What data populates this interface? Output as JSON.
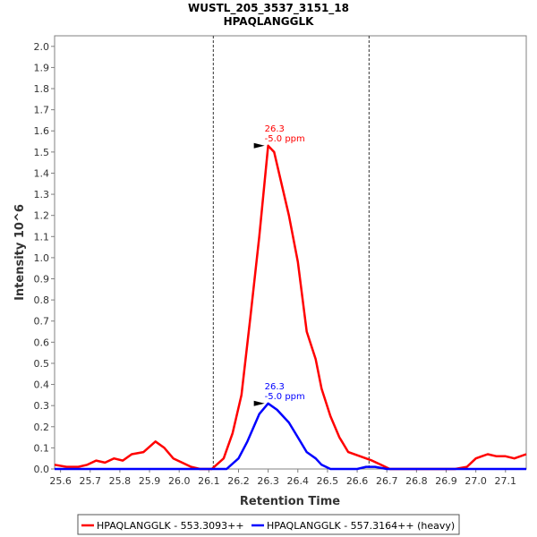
{
  "chart_data": {
    "type": "line",
    "title": "WUSTL_205_3537_3151_18",
    "subtitle": "HPAQLANGGLK",
    "xlabel": "Retention Time",
    "ylabel": "Intensity 10^6",
    "xlim": [
      25.58,
      27.17
    ],
    "ylim": [
      0.0,
      2.05
    ],
    "x_ticks": [
      25.6,
      25.7,
      25.8,
      25.9,
      26.0,
      26.1,
      26.2,
      26.3,
      26.4,
      26.5,
      26.6,
      26.7,
      26.8,
      26.9,
      27.0,
      27.1
    ],
    "x_tick_labels": [
      "25.6",
      "25.7",
      "25.8",
      "25.9",
      "26.0",
      "26.1",
      "26.2",
      "26.3",
      "26.4",
      "26.5",
      "26.6",
      "26.7",
      "26.8",
      "26.9",
      "27.0",
      "27.1"
    ],
    "y_ticks": [
      0.0,
      0.1,
      0.2,
      0.3,
      0.4,
      0.5,
      0.6,
      0.7,
      0.8,
      0.9,
      1.0,
      1.1,
      1.2,
      1.3,
      1.4,
      1.5,
      1.6,
      1.7,
      1.8,
      1.9,
      2.0
    ],
    "y_tick_labels": [
      "0.0",
      "0.1",
      "0.2",
      "0.3",
      "0.4",
      "0.5",
      "0.6",
      "0.7",
      "0.8",
      "0.9",
      "1.0",
      "1.1",
      "1.2",
      "1.3",
      "1.4",
      "1.5",
      "1.6",
      "1.7",
      "1.8",
      "1.9",
      "2.0"
    ],
    "integration_bounds": [
      26.115,
      26.64
    ],
    "series": [
      {
        "name": "HPAQLANGGLK - 553.3093++",
        "color": "#ff0000",
        "points": [
          [
            25.58,
            0.02
          ],
          [
            25.62,
            0.01
          ],
          [
            25.66,
            0.01
          ],
          [
            25.69,
            0.02
          ],
          [
            25.72,
            0.04
          ],
          [
            25.75,
            0.03
          ],
          [
            25.78,
            0.05
          ],
          [
            25.81,
            0.04
          ],
          [
            25.84,
            0.07
          ],
          [
            25.88,
            0.08
          ],
          [
            25.92,
            0.13
          ],
          [
            25.95,
            0.1
          ],
          [
            25.98,
            0.05
          ],
          [
            26.01,
            0.03
          ],
          [
            26.04,
            0.01
          ],
          [
            26.07,
            0.0
          ],
          [
            26.11,
            0.0
          ],
          [
            26.15,
            0.05
          ],
          [
            26.18,
            0.17
          ],
          [
            26.21,
            0.35
          ],
          [
            26.24,
            0.72
          ],
          [
            26.27,
            1.1
          ],
          [
            26.3,
            1.53
          ],
          [
            26.32,
            1.5
          ],
          [
            26.34,
            1.38
          ],
          [
            26.37,
            1.2
          ],
          [
            26.4,
            0.98
          ],
          [
            26.43,
            0.65
          ],
          [
            26.46,
            0.52
          ],
          [
            26.48,
            0.38
          ],
          [
            26.51,
            0.25
          ],
          [
            26.54,
            0.15
          ],
          [
            26.57,
            0.08
          ],
          [
            26.61,
            0.06
          ],
          [
            26.65,
            0.04
          ],
          [
            26.68,
            0.02
          ],
          [
            26.71,
            0.0
          ],
          [
            26.8,
            0.0
          ],
          [
            26.93,
            0.0
          ],
          [
            26.97,
            0.01
          ],
          [
            27.0,
            0.05
          ],
          [
            27.02,
            0.06
          ],
          [
            27.04,
            0.07
          ],
          [
            27.07,
            0.06
          ],
          [
            27.1,
            0.06
          ],
          [
            27.13,
            0.05
          ],
          [
            27.17,
            0.07
          ]
        ]
      },
      {
        "name": "HPAQLANGGLK - 557.3164++ (heavy)",
        "color": "#0000ff",
        "points": [
          [
            25.58,
            0.0
          ],
          [
            26.13,
            0.0
          ],
          [
            26.16,
            0.0
          ],
          [
            26.2,
            0.05
          ],
          [
            26.23,
            0.13
          ],
          [
            26.27,
            0.26
          ],
          [
            26.3,
            0.31
          ],
          [
            26.33,
            0.28
          ],
          [
            26.37,
            0.22
          ],
          [
            26.4,
            0.15
          ],
          [
            26.43,
            0.08
          ],
          [
            26.46,
            0.05
          ],
          [
            26.48,
            0.02
          ],
          [
            26.51,
            0.0
          ],
          [
            26.6,
            0.0
          ],
          [
            26.63,
            0.01
          ],
          [
            26.66,
            0.01
          ],
          [
            26.7,
            0.0
          ],
          [
            27.17,
            0.0
          ]
        ]
      }
    ],
    "annotations": [
      {
        "x": 26.3,
        "y": 1.53,
        "lines": [
          "26.3",
          "-5.0 ppm"
        ],
        "color": "#ff0000"
      },
      {
        "x": 26.3,
        "y": 0.31,
        "lines": [
          "26.3",
          "-5.0 ppm"
        ],
        "color": "#0000ff"
      }
    ],
    "legend_position": "bottom"
  }
}
